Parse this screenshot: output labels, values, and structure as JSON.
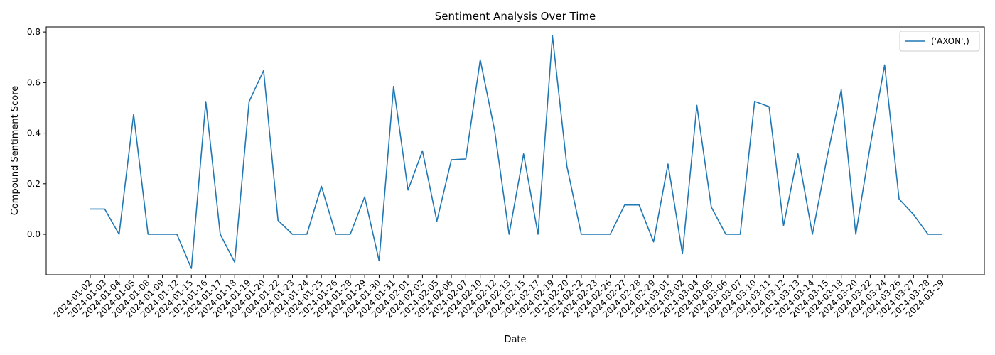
{
  "chart_data": {
    "type": "line",
    "title": "Sentiment Analysis Over Time",
    "xlabel": "Date",
    "ylabel": "Compound Sentiment Score",
    "ylim": [
      -0.16,
      0.82
    ],
    "yticks": [
      0.0,
      0.2,
      0.4,
      0.6,
      0.8
    ],
    "ytick_labels": [
      "0.0",
      "0.2",
      "0.4",
      "0.6",
      "0.8"
    ],
    "grid": false,
    "legend_position": "top-right",
    "series_color": "#1f77b4",
    "x": [
      "2024-01-02",
      "2024-01-03",
      "2024-01-04",
      "2024-01-05",
      "2024-01-08",
      "2024-01-09",
      "2024-01-12",
      "2024-01-15",
      "2024-01-16",
      "2024-01-17",
      "2024-01-18",
      "2024-01-19",
      "2024-01-20",
      "2024-01-22",
      "2024-01-23",
      "2024-01-24",
      "2024-01-25",
      "2024-01-26",
      "2024-01-28",
      "2024-01-29",
      "2024-01-30",
      "2024-01-31",
      "2024-02-01",
      "2024-02-02",
      "2024-02-05",
      "2024-02-06",
      "2024-02-07",
      "2024-02-10",
      "2024-02-12",
      "2024-02-13",
      "2024-02-15",
      "2024-02-17",
      "2024-02-19",
      "2024-02-20",
      "2024-02-22",
      "2024-02-23",
      "2024-02-26",
      "2024-02-27",
      "2024-02-28",
      "2024-02-29",
      "2024-03-01",
      "2024-03-02",
      "2024-03-04",
      "2024-03-05",
      "2024-03-06",
      "2024-03-07",
      "2024-03-10",
      "2024-03-11",
      "2024-03-12",
      "2024-03-13",
      "2024-03-14",
      "2024-03-15",
      "2024-03-18",
      "2024-03-20",
      "2024-03-22",
      "2024-03-24",
      "2024-03-26",
      "2024-03-27",
      "2024-03-28",
      "2024-03-29"
    ],
    "series": [
      {
        "name": "('AXON',)",
        "values": [
          0.1,
          0.1,
          0.0,
          0.475,
          0.0,
          0.0,
          0.0,
          -0.135,
          0.525,
          0.0,
          -0.11,
          0.525,
          0.648,
          0.055,
          0.0,
          0.0,
          0.19,
          0.0,
          0.0,
          0.148,
          -0.105,
          0.585,
          0.175,
          0.33,
          0.052,
          0.295,
          0.298,
          0.69,
          0.41,
          0.0,
          0.318,
          0.0,
          0.785,
          0.27,
          0.0,
          0.0,
          0.0,
          0.116,
          0.116,
          -0.03,
          0.278,
          -0.077,
          0.51,
          0.108,
          0.0,
          0.0,
          0.526,
          0.505,
          0.035,
          0.318,
          0.0,
          0.3,
          0.572,
          0.0,
          0.35,
          0.67,
          0.14,
          0.078,
          0.0,
          0.0
        ]
      }
    ]
  }
}
